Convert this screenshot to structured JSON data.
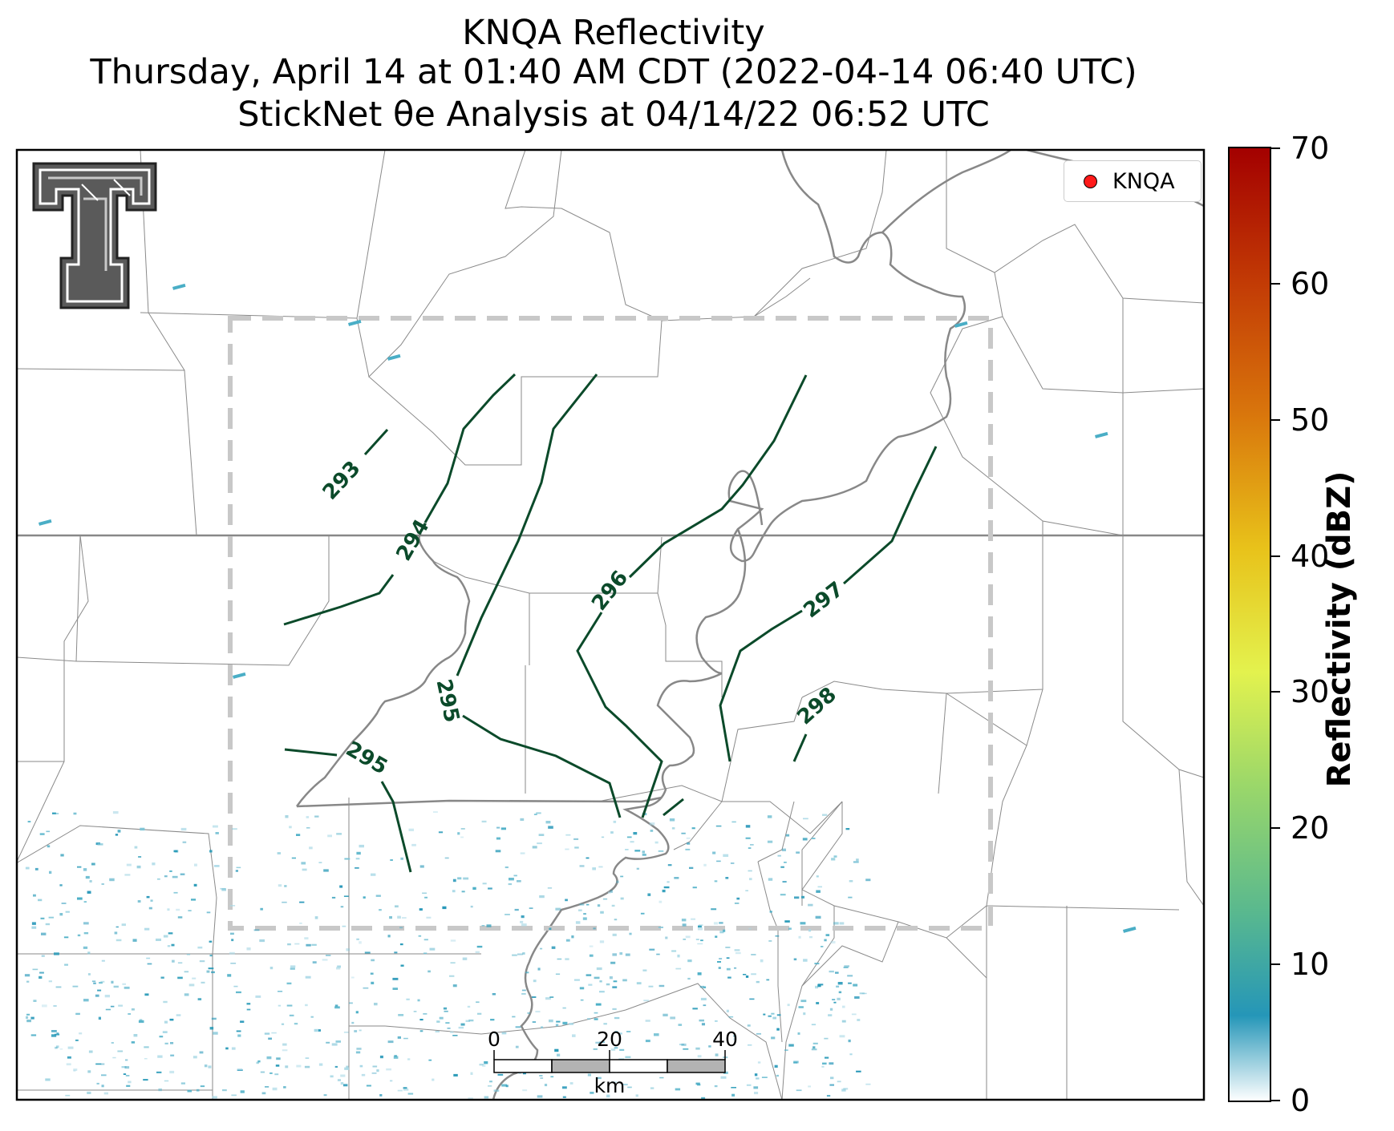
{
  "title": {
    "line1": "KNQA Reflectivity",
    "line2": "Thursday, April 14 at 01:40 AM CDT (2022-04-14 06:40 UTC)",
    "line3": "StickNet θe Analysis at 04/14/22 06:52 UTC"
  },
  "legend": {
    "label": "KNQA",
    "marker_color": "#ff1a1a"
  },
  "colorbar": {
    "label": "Reflectivity (dBZ)",
    "ticks": [
      "0",
      "10",
      "20",
      "30",
      "40",
      "50",
      "60",
      "70"
    ],
    "min": 0,
    "max": 70,
    "colors": [
      "#ffffff",
      "#2596b8",
      "#5ab98e",
      "#9ad76a",
      "#e3f24e",
      "#e8c21a",
      "#d9760c",
      "#c23a05",
      "#a30000"
    ]
  },
  "contours": {
    "color": "#0b4a2a",
    "labels": [
      "293",
      "294",
      "295",
      "295",
      "296",
      "297",
      "298"
    ]
  },
  "scale_bar": {
    "ticks": [
      "0",
      "20",
      "40"
    ],
    "unit": "km"
  },
  "analysis_box": {
    "style": "dashed",
    "color": "#c8c8c8"
  }
}
